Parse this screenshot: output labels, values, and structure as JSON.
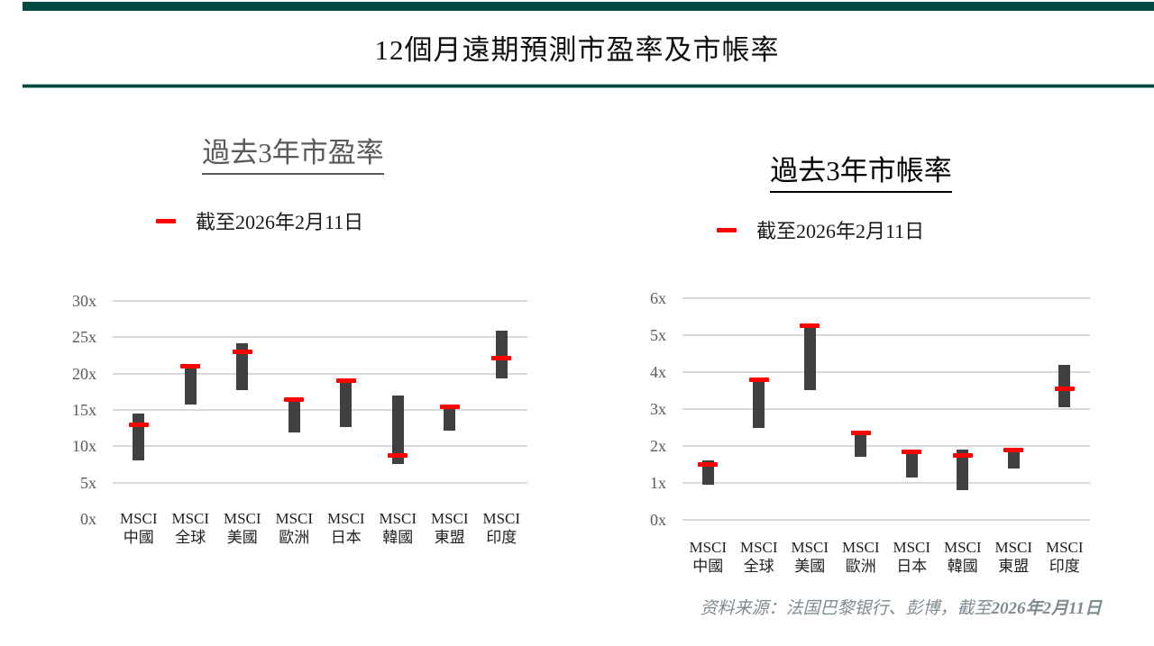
{
  "page": {
    "title": "12個月遠期預測市盈率及市帳率",
    "source": {
      "prefix": "资料来源：法国巴黎银行、彭博，截至",
      "date": "2026年2月11日"
    },
    "colors": {
      "accent_green": "#004a42",
      "bar_gray": "#404040",
      "marker_red": "#ff0000",
      "gridline_gray": "#d9d9d9",
      "axis_label_gray": "#595959"
    }
  },
  "chart_data": [
    {
      "type": "bar",
      "subtype": "floating-range-bar-with-marker",
      "title": "過去3年市盈率",
      "legend": {
        "label": "截至2026年2月11日",
        "position": "top",
        "marker": "red-dash"
      },
      "categories": [
        "MSCI 中國",
        "MSCI 全球",
        "MSCI 美國",
        "MSCI 歐洲",
        "MSCI 日本",
        "MSCI 韓國",
        "MSCI 東盟",
        "MSCI 印度"
      ],
      "series": [
        {
          "name": "range_low",
          "values": [
            8.1,
            15.8,
            17.7,
            11.9,
            12.6,
            7.6,
            12.1,
            19.3
          ]
        },
        {
          "name": "range_high",
          "values": [
            14.5,
            21.2,
            24.2,
            16.2,
            18.9,
            17.0,
            15.3,
            25.9
          ]
        },
        {
          "name": "截至2026年2月11日",
          "values": [
            13.0,
            21.0,
            23.0,
            16.4,
            19.0,
            8.7,
            15.4,
            22.1
          ]
        }
      ],
      "ylim": [
        0,
        30
      ],
      "yticks": [
        {
          "value": 30,
          "label": "30x"
        },
        {
          "value": 25,
          "label": "25x"
        },
        {
          "value": 20,
          "label": "20x"
        },
        {
          "value": 15,
          "label": "15x"
        },
        {
          "value": 10,
          "label": "10x"
        },
        {
          "value": 5,
          "label": "5x"
        },
        {
          "value": 0,
          "label": "0x"
        }
      ],
      "grid": true,
      "zero_gridline": false
    },
    {
      "type": "bar",
      "subtype": "floating-range-bar-with-marker",
      "title": "過去3年市帳率",
      "legend": {
        "label": "截至2026年2月11日",
        "position": "top",
        "marker": "red-dash"
      },
      "categories": [
        "MSCI 中國",
        "MSCI 全球",
        "MSCI 美國",
        "MSCI 歐洲",
        "MSCI 日本",
        "MSCI 韓國",
        "MSCI 東盟",
        "MSCI 印度"
      ],
      "series": [
        {
          "name": "range_low",
          "values": [
            0.95,
            2.5,
            3.5,
            1.7,
            1.15,
            0.8,
            1.4,
            3.05
          ]
        },
        {
          "name": "range_high",
          "values": [
            1.6,
            3.75,
            5.2,
            2.3,
            1.8,
            1.9,
            1.85,
            4.2
          ]
        },
        {
          "name": "截至2026年2月11日",
          "values": [
            1.5,
            3.8,
            5.25,
            2.35,
            1.85,
            1.75,
            1.9,
            3.55
          ]
        }
      ],
      "ylim": [
        0,
        6
      ],
      "yticks": [
        {
          "value": 6,
          "label": "6x"
        },
        {
          "value": 5,
          "label": "5x"
        },
        {
          "value": 4,
          "label": "4x"
        },
        {
          "value": 3,
          "label": "3x"
        },
        {
          "value": 2,
          "label": "2x"
        },
        {
          "value": 1,
          "label": "1x"
        },
        {
          "value": 0,
          "label": "0x"
        }
      ],
      "grid": true,
      "zero_gridline": true
    }
  ]
}
